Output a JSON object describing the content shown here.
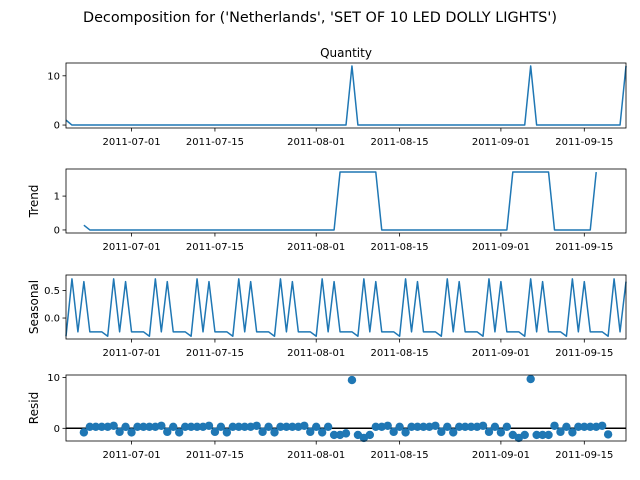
{
  "suptitle": "Decomposition for ('Netherlands', 'SET OF 10 LED DOLLY LIGHTS')",
  "line_color": "#1f77b4",
  "chart_data": [
    {
      "type": "line",
      "title": "Quantity",
      "ylabel": "",
      "x_start": "2011-06-20",
      "x_end": "2011-09-22",
      "ylim": [
        -0.6,
        12.6
      ],
      "yticks": [
        0,
        10
      ],
      "xticks": [
        "2011-07-01",
        "2011-07-15",
        "2011-08-01",
        "2011-08-15",
        "2011-09-01",
        "2011-09-15"
      ],
      "series": [
        {
          "x": [
            "2011-06-20",
            "2011-06-21",
            "2011-08-06",
            "2011-08-07",
            "2011-08-08",
            "2011-09-05",
            "2011-09-06",
            "2011-09-07",
            "2011-09-21",
            "2011-09-22"
          ],
          "y": [
            1,
            0,
            0,
            12,
            0,
            0,
            12,
            0,
            0,
            12
          ]
        }
      ]
    },
    {
      "type": "line",
      "title": "",
      "ylabel": "Trend",
      "x_start": "2011-06-20",
      "x_end": "2011-09-22",
      "ylim": [
        -0.09,
        1.8
      ],
      "yticks": [
        0,
        1
      ],
      "xticks": [
        "2011-07-01",
        "2011-07-15",
        "2011-08-01",
        "2011-08-15",
        "2011-09-01",
        "2011-09-15"
      ],
      "series": [
        {
          "x": [
            "2011-06-23",
            "2011-06-24",
            "2011-08-04",
            "2011-08-05",
            "2011-08-11",
            "2011-08-12",
            "2011-09-02",
            "2011-09-03",
            "2011-09-09",
            "2011-09-10",
            "2011-09-16",
            "2011-09-17"
          ],
          "y": [
            0.14,
            0,
            0,
            1.71,
            1.71,
            0,
            0,
            1.71,
            1.71,
            0,
            0,
            1.71
          ]
        }
      ]
    },
    {
      "type": "line",
      "title": "",
      "ylabel": "Seasonal",
      "x_start": "2011-06-20",
      "x_end": "2011-09-22",
      "ylim": [
        -0.38,
        0.78
      ],
      "yticks": [
        0.0,
        0.5
      ],
      "xticks": [
        "2011-07-01",
        "2011-07-15",
        "2011-08-01",
        "2011-08-15",
        "2011-09-01",
        "2011-09-15"
      ],
      "pattern": [
        -0.33,
        0.71,
        -0.25,
        0.66,
        -0.25,
        -0.25,
        -0.25
      ],
      "series": [
        {
          "x_start": "2011-06-20",
          "x_end": "2011-09-22"
        }
      ]
    },
    {
      "type": "scatter",
      "title": "",
      "ylabel": "Resid",
      "x_start": "2011-06-20",
      "x_end": "2011-09-22",
      "ylim": [
        -2.5,
        10.5
      ],
      "yticks": [
        0,
        10
      ],
      "hline": 0,
      "xticks": [
        "2011-07-01",
        "2011-07-15",
        "2011-08-01",
        "2011-08-15",
        "2011-09-01",
        "2011-09-15"
      ],
      "series": [
        {
          "x": [
            "2011-06-23",
            "2011-06-24",
            "2011-06-25",
            "2011-06-26",
            "2011-06-27",
            "2011-06-28",
            "2011-06-29",
            "2011-06-30",
            "2011-07-01",
            "2011-07-02",
            "2011-07-03",
            "2011-07-04",
            "2011-07-05",
            "2011-07-06",
            "2011-07-07",
            "2011-07-08",
            "2011-07-09",
            "2011-07-10",
            "2011-07-11",
            "2011-07-12",
            "2011-07-13",
            "2011-07-14",
            "2011-07-15",
            "2011-07-16",
            "2011-07-17",
            "2011-07-18",
            "2011-07-19",
            "2011-07-20",
            "2011-07-21",
            "2011-07-22",
            "2011-07-23",
            "2011-07-24",
            "2011-07-25",
            "2011-07-26",
            "2011-07-27",
            "2011-07-28",
            "2011-07-29",
            "2011-07-30",
            "2011-07-31",
            "2011-08-01",
            "2011-08-02",
            "2011-08-03",
            "2011-08-04",
            "2011-08-05",
            "2011-08-06",
            "2011-08-07",
            "2011-08-08",
            "2011-08-09",
            "2011-08-10",
            "2011-08-11",
            "2011-08-12",
            "2011-08-13",
            "2011-08-14",
            "2011-08-15",
            "2011-08-16",
            "2011-08-17",
            "2011-08-18",
            "2011-08-19",
            "2011-08-20",
            "2011-08-21",
            "2011-08-22",
            "2011-08-23",
            "2011-08-24",
            "2011-08-25",
            "2011-08-26",
            "2011-08-27",
            "2011-08-28",
            "2011-08-29",
            "2011-08-30",
            "2011-08-31",
            "2011-09-01",
            "2011-09-02",
            "2011-09-03",
            "2011-09-04",
            "2011-09-05",
            "2011-09-06",
            "2011-09-07",
            "2011-09-08",
            "2011-09-09",
            "2011-09-10",
            "2011-09-11",
            "2011-09-12",
            "2011-09-13",
            "2011-09-14",
            "2011-09-15",
            "2011-09-16",
            "2011-09-17",
            "2011-09-18",
            "2011-09-19"
          ],
          "y": [
            -0.8,
            0.3,
            0.3,
            0.3,
            0.3,
            0.5,
            -0.7,
            0.3,
            -0.8,
            0.3,
            0.3,
            0.3,
            0.3,
            0.5,
            -0.7,
            0.3,
            -0.8,
            0.3,
            0.3,
            0.3,
            0.3,
            0.5,
            -0.7,
            0.3,
            -0.8,
            0.3,
            0.3,
            0.3,
            0.3,
            0.5,
            -0.7,
            0.3,
            -0.8,
            0.3,
            0.3,
            0.3,
            0.3,
            0.5,
            -0.7,
            0.3,
            -0.8,
            0.3,
            -1.3,
            -1.3,
            -1.0,
            9.5,
            -1.3,
            -1.9,
            -1.3,
            0.3,
            0.3,
            0.5,
            -0.7,
            0.3,
            -0.8,
            0.3,
            0.3,
            0.3,
            0.3,
            0.5,
            -0.7,
            0.3,
            -0.8,
            0.3,
            0.3,
            0.3,
            0.3,
            0.5,
            -0.7,
            0.3,
            -0.8,
            0.3,
            -1.3,
            -1.9,
            -1.3,
            9.7,
            -1.3,
            -1.3,
            -1.3,
            0.5,
            -0.7,
            0.3,
            -0.8,
            0.3,
            0.3,
            0.3,
            0.3,
            0.5,
            -1.2
          ]
        }
      ]
    }
  ]
}
